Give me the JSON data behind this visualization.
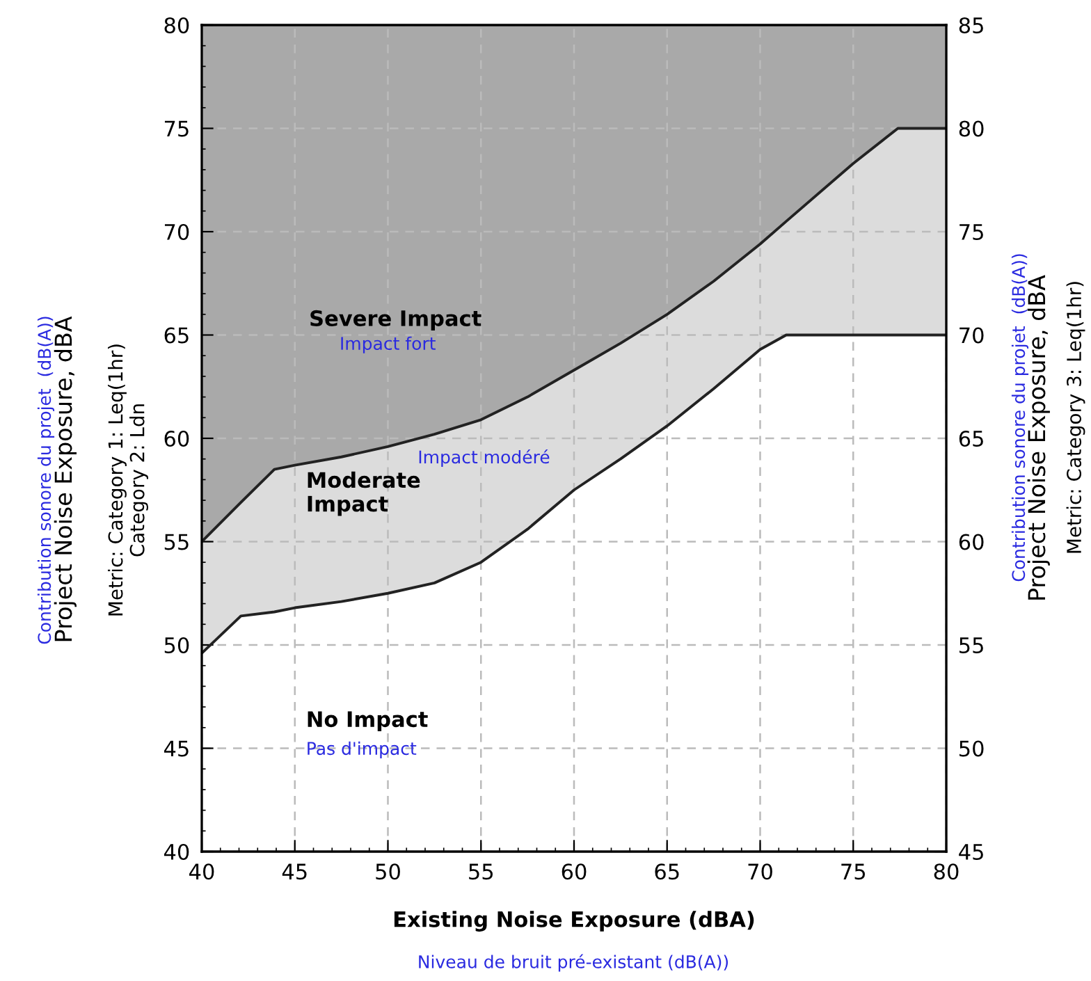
{
  "chart_data": {
    "type": "area",
    "xlabel": "Existing Noise Exposure (dBA)",
    "ylabel": "Project Noise Exposure, dBA",
    "y2label": "Project Noise Exposure, dBA",
    "x": [
      40,
      42.1,
      43.9,
      45,
      47.5,
      50,
      52.5,
      55,
      57.5,
      60,
      62.5,
      65,
      67.5,
      70,
      71.4,
      75,
      77.4,
      80
    ],
    "series": [
      {
        "color": "#dcdcdc",
        "values": [
          55,
          56.9,
          58.5,
          58.7,
          59.1,
          59.6,
          60.2,
          60.9,
          62.0,
          63.3,
          64.6,
          66.0,
          67.6,
          69.4,
          70.5,
          73.3,
          75,
          75
        ]
      },
      {
        "color": "#ffffff",
        "values": [
          49.6,
          51.4,
          51.6,
          51.8,
          52.1,
          52.5,
          53.0,
          54.0,
          55.6,
          57.5,
          59.0,
          60.6,
          62.4,
          64.3,
          65,
          65,
          65,
          65
        ]
      }
    ],
    "xlim": [
      40,
      80
    ],
    "xticks": [
      40,
      45,
      50,
      55,
      60,
      65,
      70,
      75,
      80
    ],
    "ylim": [
      40,
      80
    ],
    "yticks": [
      40,
      45,
      50,
      55,
      60,
      65,
      70,
      75,
      80
    ],
    "y2lim": [
      45,
      85
    ],
    "y2ticks": [
      45,
      50,
      55,
      60,
      65,
      70,
      75,
      80,
      85
    ],
    "bands": [
      {
        "axis": "y",
        "from": 55,
        "to": 80,
        "color": "#a9a9a9"
      }
    ],
    "grid": true,
    "line_style": "solid",
    "annotations": [
      "Niveau de bruit pré-existant (dB(A))",
      "Contribution sonore du projet  (dB(A))",
      "Metric: Category 1: Leq(1hr)\nCategory 2: Ldn",
      "Contribution sonore du projet  (dB(A))",
      "Metric: Category 3: Leq(1hr)",
      "Severe Impact",
      "Impact fort",
      "Impact modéré",
      "Moderate\nImpact",
      "No Impact",
      "Pas d'impact"
    ]
  }
}
